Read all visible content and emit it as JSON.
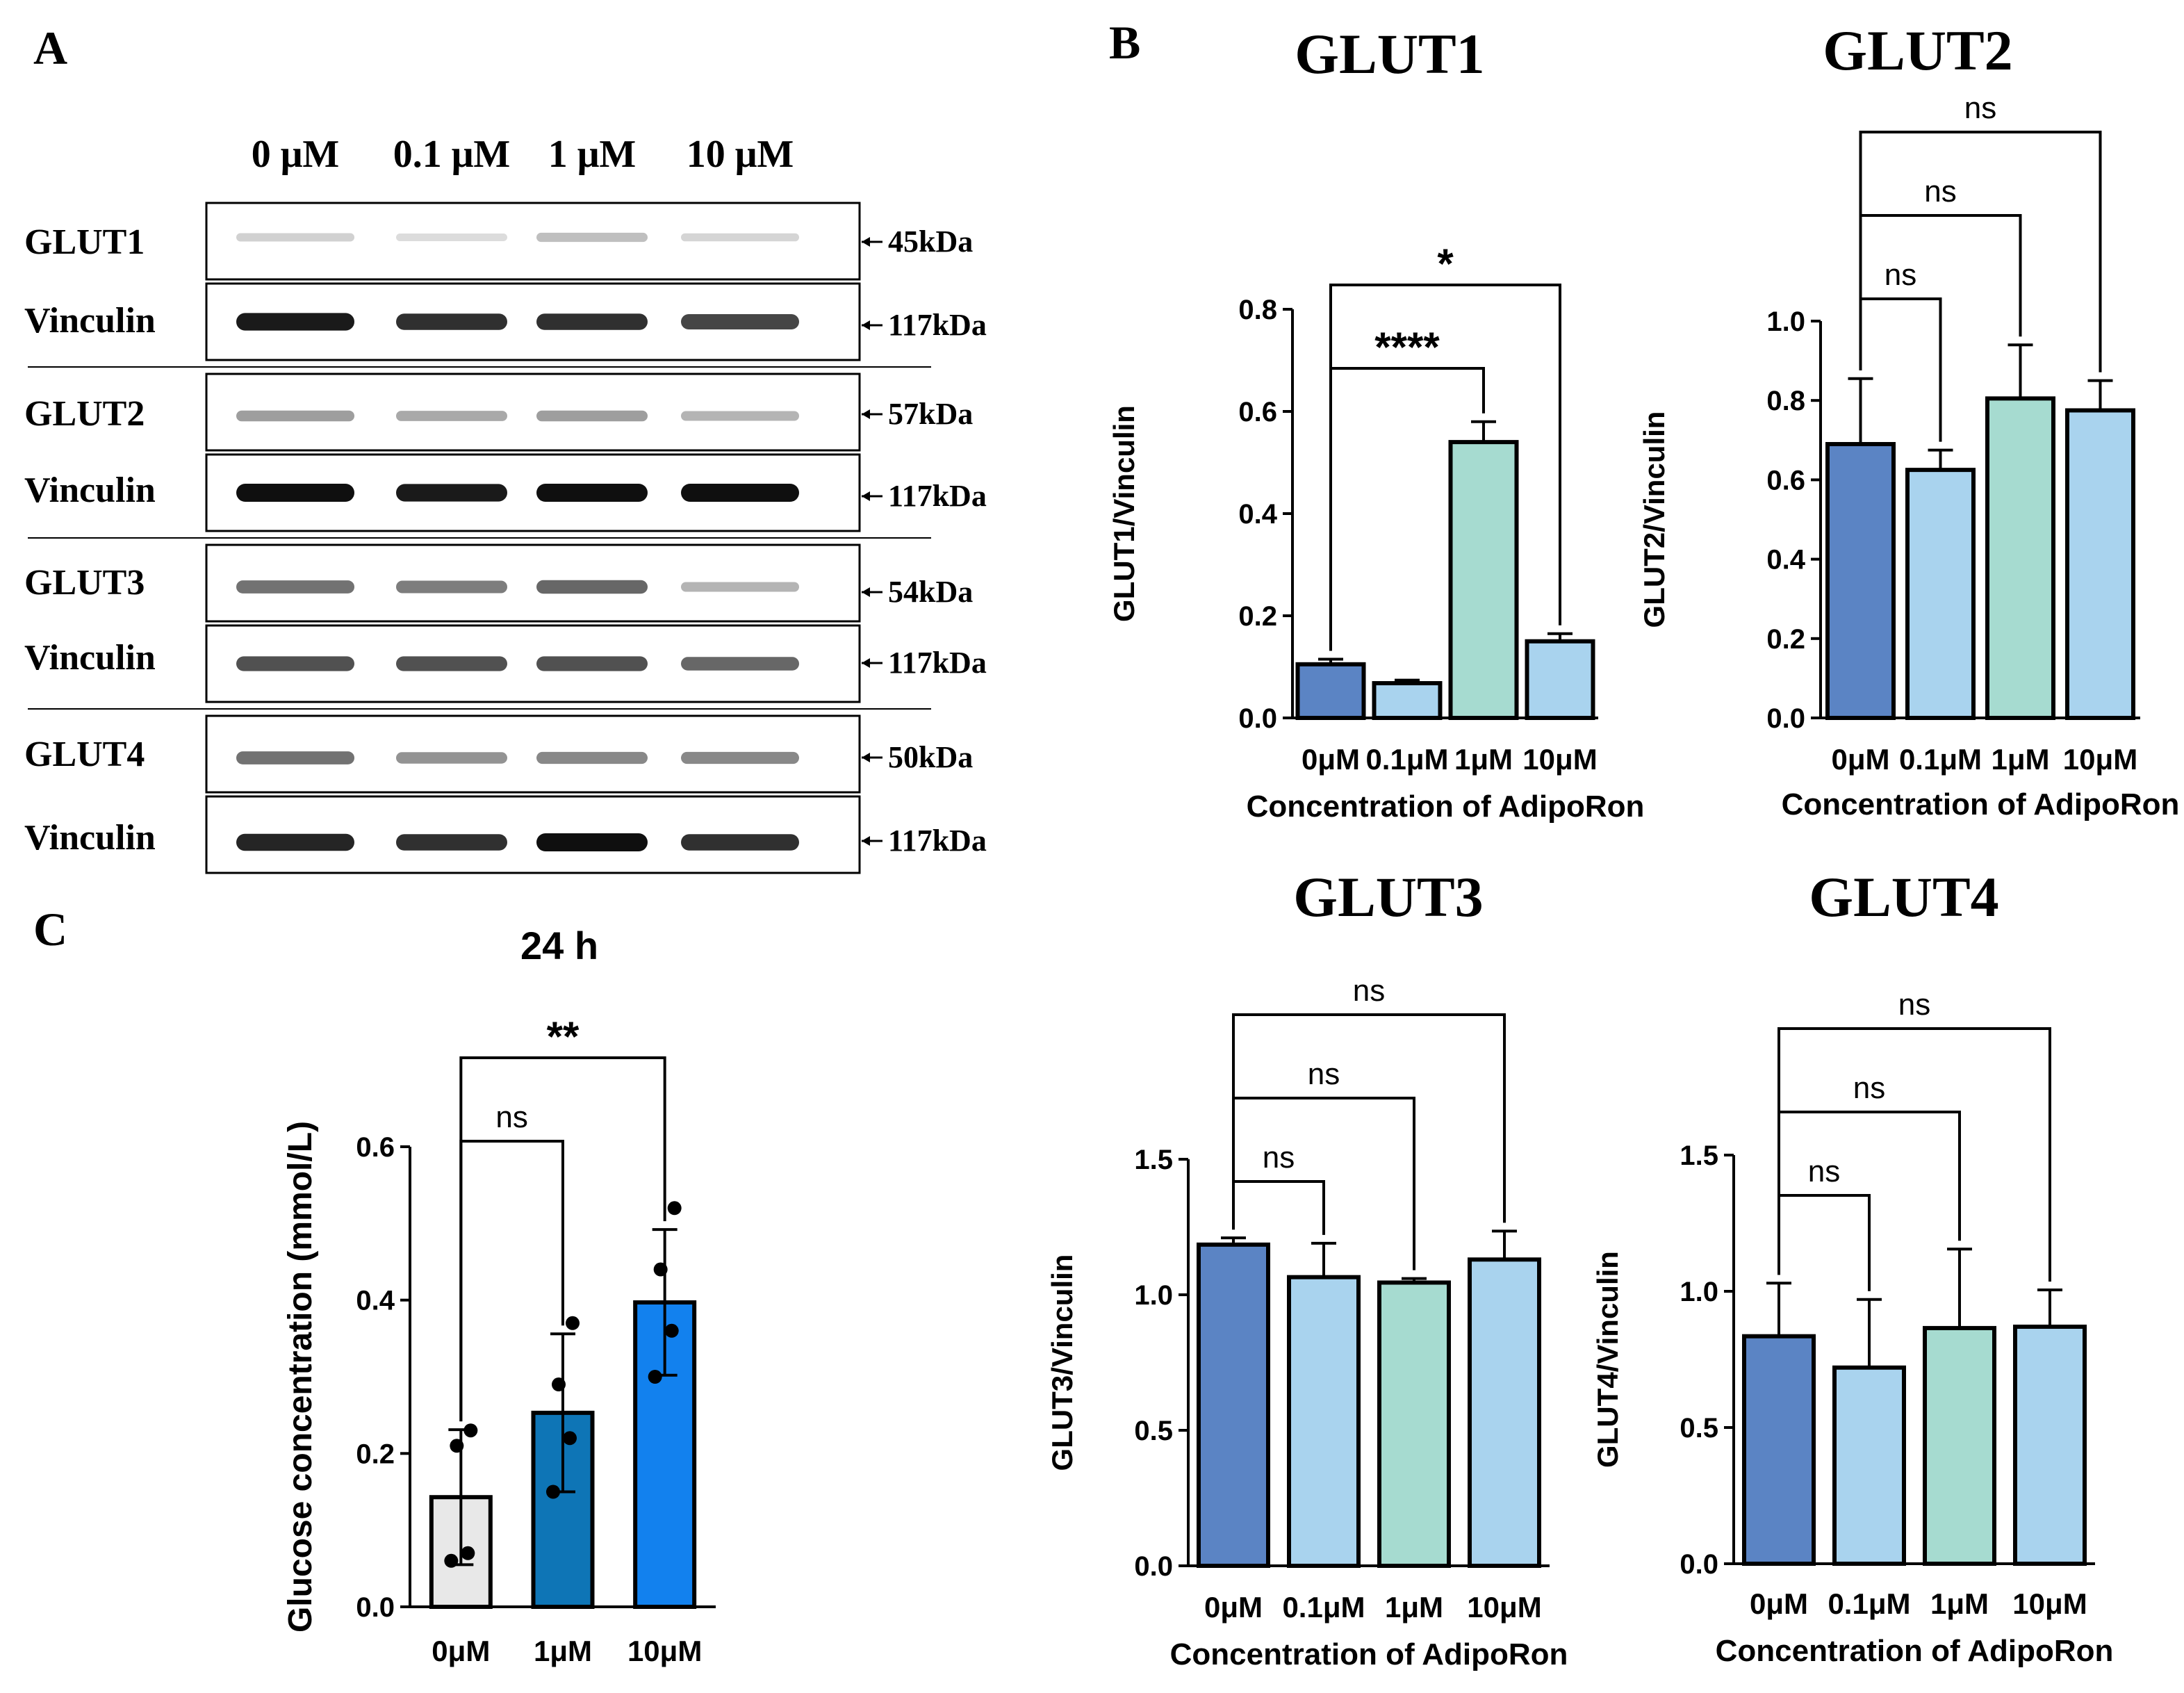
{
  "panel_labels": {
    "a": "A",
    "b": "B",
    "c": "C"
  },
  "blot": {
    "lane_labels": [
      "0 μM",
      "0.1 μM",
      "1 μM",
      "10 μM"
    ],
    "rows": [
      {
        "name": "GLUT1",
        "kda": "45kDa",
        "intensity": [
          0.12,
          0.07,
          0.2,
          0.1
        ]
      },
      {
        "name": "Vinculin",
        "kda": "117kDa",
        "intensity": [
          0.95,
          0.85,
          0.85,
          0.75
        ]
      },
      {
        "name": "GLUT2",
        "kda": "57kDa",
        "intensity": [
          0.35,
          0.3,
          0.35,
          0.25
        ]
      },
      {
        "name": "Vinculin",
        "kda": "117kDa",
        "intensity": [
          1.0,
          0.95,
          1.0,
          1.0
        ]
      },
      {
        "name": "GLUT3",
        "kda": "54kDa",
        "intensity": [
          0.55,
          0.5,
          0.6,
          0.25
        ]
      },
      {
        "name": "Vinculin",
        "kda": "117kDa",
        "intensity": [
          0.7,
          0.7,
          0.7,
          0.6
        ]
      },
      {
        "name": "GLUT4",
        "kda": "50kDa",
        "intensity": [
          0.55,
          0.4,
          0.45,
          0.45
        ]
      },
      {
        "name": "Vinculin",
        "kda": "117kDa",
        "intensity": [
          0.9,
          0.85,
          1.0,
          0.85
        ]
      }
    ]
  },
  "colors": {
    "bar_0uM": "#5b84c4",
    "bar_01uM": "#a9d3ee",
    "bar_1uM": "#a6dbd0",
    "bar_10uM": "#a9d3ee",
    "glucose_0uM": "#e8e8e8",
    "glucose_1uM": "#0e75b6",
    "glucose_10uM": "#1281ee"
  },
  "chart_data": [
    {
      "id": "glut1",
      "type": "bar",
      "title": "GLUT1",
      "xlabel": "Concentration of AdipoRon",
      "ylabel": "GLUT1/Vinculin",
      "categories": [
        "0μM",
        "0.1μM",
        "1μM",
        "10μM"
      ],
      "values": [
        0.105,
        0.068,
        0.54,
        0.15
      ],
      "errors": [
        0.01,
        0.006,
        0.04,
        0.015
      ],
      "ylim": [
        0,
        0.8
      ],
      "yticks": [
        "0.0",
        "0.2",
        "0.4",
        "0.6",
        "0.8"
      ],
      "significance": [
        {
          "from": 0,
          "to": 2,
          "label": "****"
        },
        {
          "from": 0,
          "to": 3,
          "label": "*"
        }
      ]
    },
    {
      "id": "glut2",
      "type": "bar",
      "title": "GLUT2",
      "xlabel": "Concentration of AdipoRon",
      "ylabel": "GLUT2/Vinculin",
      "categories": [
        "0μM",
        "0.1μM",
        "1μM",
        "10μM"
      ],
      "values": [
        0.69,
        0.625,
        0.805,
        0.775
      ],
      "errors": [
        0.165,
        0.05,
        0.135,
        0.075
      ],
      "ylim": [
        0,
        1.0
      ],
      "yticks": [
        "0.0",
        "0.2",
        "0.4",
        "0.6",
        "0.8",
        "1.0"
      ],
      "significance": [
        {
          "from": 0,
          "to": 1,
          "label": "ns"
        },
        {
          "from": 0,
          "to": 2,
          "label": "ns"
        },
        {
          "from": 0,
          "to": 3,
          "label": "ns"
        }
      ]
    },
    {
      "id": "glut3",
      "type": "bar",
      "title": "GLUT3",
      "xlabel": "Concentration of AdipoRon",
      "ylabel": "GLUT3/Vinculin",
      "categories": [
        "0μM",
        "0.1μM",
        "1μM",
        "10μM"
      ],
      "values": [
        1.185,
        1.065,
        1.045,
        1.13
      ],
      "errors": [
        0.025,
        0.125,
        0.015,
        0.105
      ],
      "ylim": [
        0,
        1.5
      ],
      "yticks": [
        "0.0",
        "0.5",
        "1.0",
        "1.5"
      ],
      "significance": [
        {
          "from": 0,
          "to": 1,
          "label": "ns"
        },
        {
          "from": 0,
          "to": 2,
          "label": "ns"
        },
        {
          "from": 0,
          "to": 3,
          "label": "ns"
        }
      ]
    },
    {
      "id": "glut4",
      "type": "bar",
      "title": "GLUT4",
      "xlabel": "Concentration of AdipoRon",
      "ylabel": "GLUT4/Vinculin",
      "categories": [
        "0μM",
        "0.1μM",
        "1μM",
        "10μM"
      ],
      "values": [
        0.835,
        0.72,
        0.865,
        0.87
      ],
      "errors": [
        0.195,
        0.25,
        0.29,
        0.135
      ],
      "ylim": [
        0,
        1.5
      ],
      "yticks": [
        "0.0",
        "0.5",
        "1.0",
        "1.5"
      ],
      "significance": [
        {
          "from": 0,
          "to": 1,
          "label": "ns"
        },
        {
          "from": 0,
          "to": 2,
          "label": "ns"
        },
        {
          "from": 0,
          "to": 3,
          "label": "ns"
        }
      ]
    },
    {
      "id": "glucose",
      "type": "bar",
      "title": "24 h",
      "xlabel": "",
      "ylabel": "Glucose concentration (mmol/L)",
      "categories": [
        "0μM",
        "1μM",
        "10μM"
      ],
      "values": [
        0.143,
        0.253,
        0.397
      ],
      "errors": [
        0.088,
        0.103,
        0.095
      ],
      "points": [
        [
          0.06,
          0.07,
          0.21,
          0.23
        ],
        [
          0.15,
          0.22,
          0.29,
          0.37
        ],
        [
          0.3,
          0.36,
          0.44,
          0.52
        ]
      ],
      "ylim": [
        0,
        0.6
      ],
      "yticks": [
        "0.0",
        "0.2",
        "0.4",
        "0.6"
      ],
      "significance": [
        {
          "from": 0,
          "to": 1,
          "label": "ns"
        },
        {
          "from": 0,
          "to": 2,
          "label": "**"
        }
      ]
    }
  ]
}
